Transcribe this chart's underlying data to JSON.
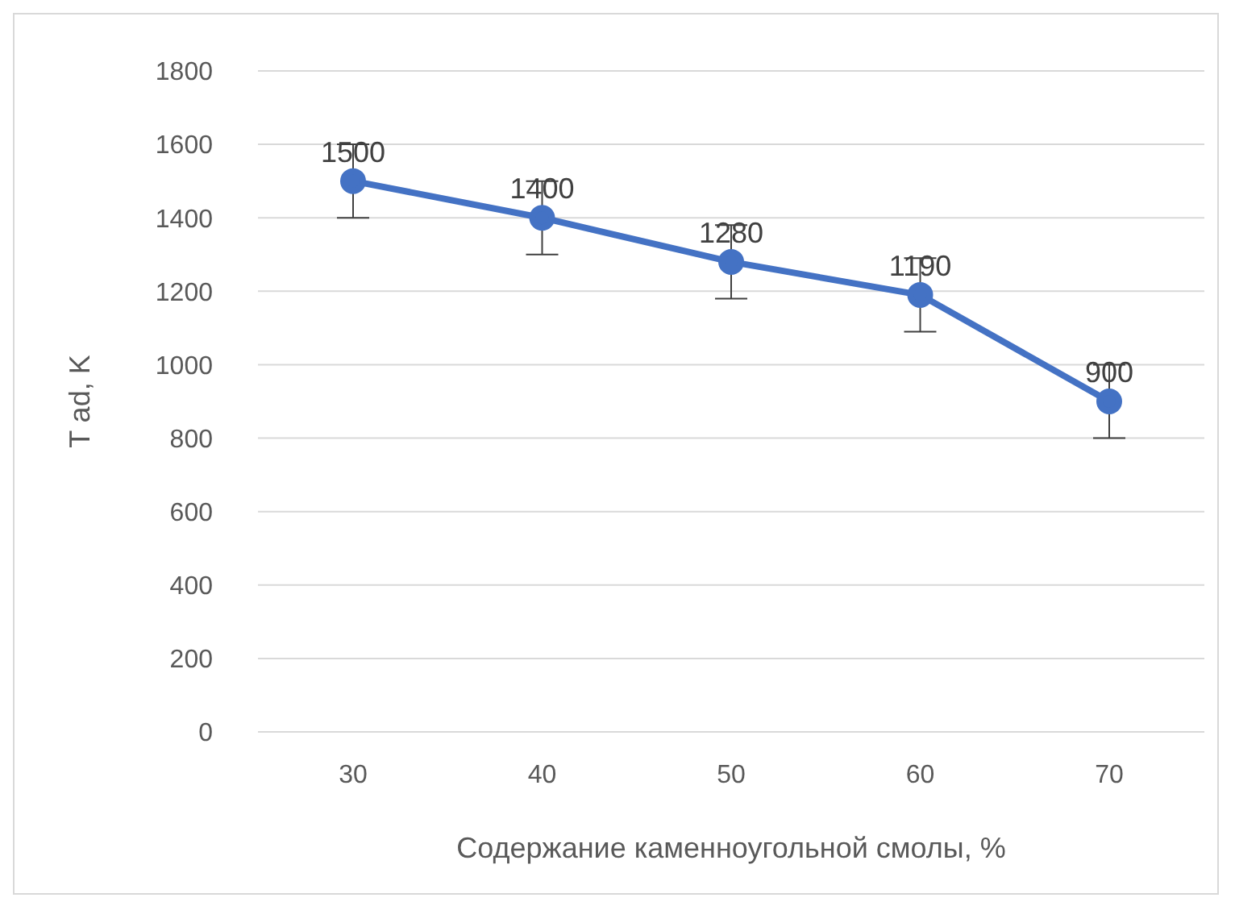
{
  "chart_data": {
    "type": "line",
    "xlabel": "Содержание каменноугольной  смолы, %",
    "ylabel": "T ad, K",
    "categories": [
      "30",
      "40",
      "50",
      "60",
      "70"
    ],
    "series": [
      {
        "color": "#4472c4",
        "values": [
          1500,
          1400,
          1280,
          1190,
          900
        ],
        "errors": [
          100,
          100,
          100,
          100,
          100
        ]
      }
    ],
    "ylim": [
      0,
      1800
    ],
    "yticks": [
      0,
      200,
      400,
      600,
      800,
      1000,
      1200,
      1400,
      1600,
      1800
    ],
    "grid": "y",
    "marker": "circle",
    "line_style": "solid",
    "data_labels": true,
    "legend": false
  }
}
